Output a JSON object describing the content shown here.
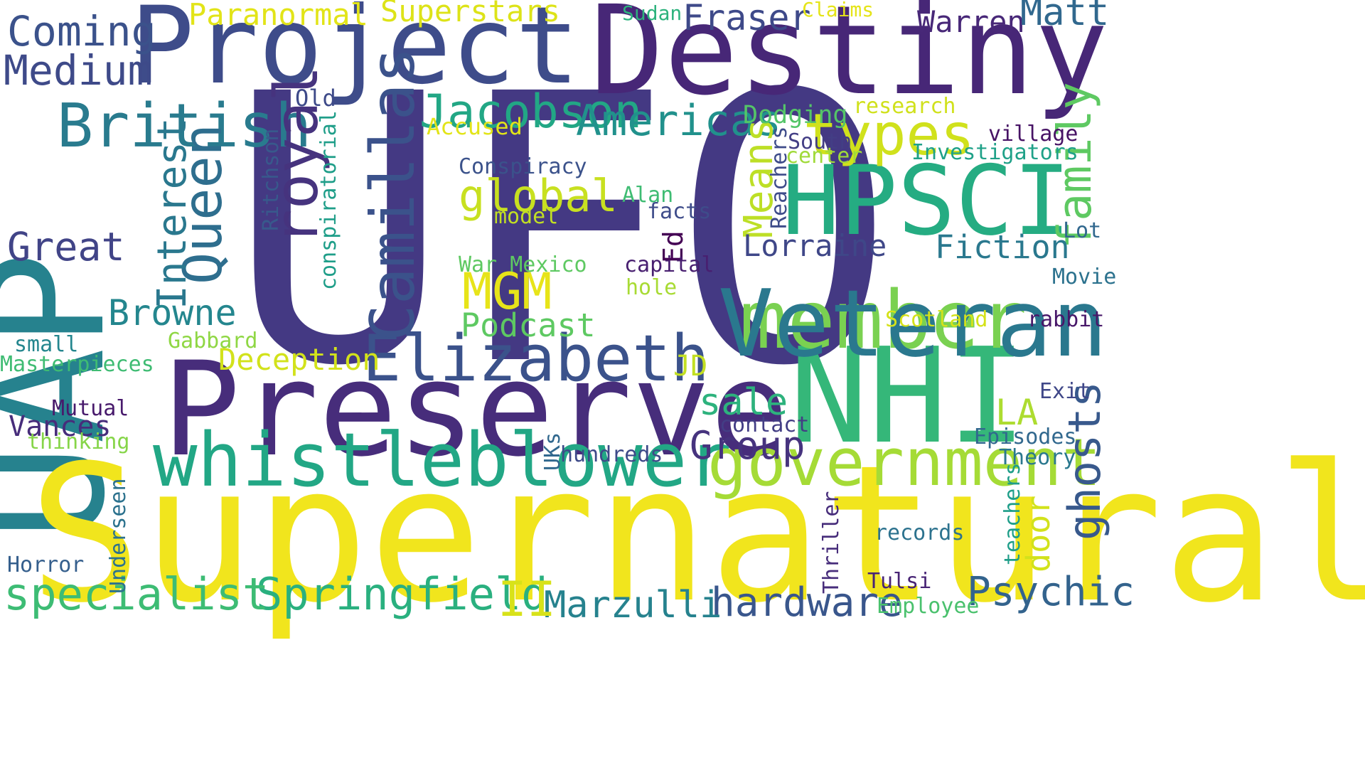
{
  "word_cloud": {
    "words": [
      {
        "text": "UFO",
        "color": "#443983"
      },
      {
        "text": "UAP",
        "color": "#26828e"
      },
      {
        "text": "Supernatural",
        "color": "#f1e51d"
      },
      {
        "text": "Preserve",
        "color": "#472d7b"
      },
      {
        "text": "Destiny",
        "color": "#472777"
      },
      {
        "text": "Project",
        "color": "#3e4c8a"
      },
      {
        "text": "NHI",
        "color": "#35b779"
      },
      {
        "text": "HPSCI",
        "color": "#25ac82"
      },
      {
        "text": "member",
        "color": "#7ad151"
      },
      {
        "text": "Veteran",
        "color": "#2a788e"
      },
      {
        "text": "whistleblower",
        "color": "#22a785"
      },
      {
        "text": "government",
        "color": "#a5db36"
      },
      {
        "text": "Elizabeth",
        "color": "#3b528b"
      },
      {
        "text": "British",
        "color": "#297b8e"
      },
      {
        "text": "Camillas",
        "color": "#3b528b"
      },
      {
        "text": "royal",
        "color": "#46337e"
      },
      {
        "text": "Queen",
        "color": "#2e6e8e"
      },
      {
        "text": "family",
        "color": "#5ec962"
      },
      {
        "text": "ghosts",
        "color": "#38598c"
      },
      {
        "text": "types",
        "color": "#d0e11c"
      },
      {
        "text": "Jacobson",
        "color": "#22a785"
      },
      {
        "text": "Americas",
        "color": "#21918c"
      },
      {
        "text": "Springfield",
        "color": "#2ab07f"
      },
      {
        "text": "specialist",
        "color": "#3dbc74"
      },
      {
        "text": "hardware",
        "color": "#39568c"
      },
      {
        "text": "Psychic",
        "color": "#33638d"
      },
      {
        "text": "Marzulli",
        "color": "#26828e"
      },
      {
        "text": "II",
        "color": "#d8e219"
      },
      {
        "text": "MGM",
        "color": "#e7e419"
      },
      {
        "text": "global",
        "color": "#c8e020"
      },
      {
        "text": "Interest",
        "color": "#2a788e"
      },
      {
        "text": "Means",
        "color": "#bddf26"
      },
      {
        "text": "Coming",
        "color": "#3b528b"
      },
      {
        "text": "Medium",
        "color": "#3e4a89"
      },
      {
        "text": "Paranormal",
        "color": "#e2e418"
      },
      {
        "text": "Superstars",
        "color": "#dde318"
      },
      {
        "text": "Fraser",
        "color": "#3e4989"
      },
      {
        "text": "Warren",
        "color": "#482878"
      },
      {
        "text": "Matt",
        "color": "#31688e"
      },
      {
        "text": "Sudan",
        "color": "#2db27d"
      },
      {
        "text": "Claims",
        "color": "#e5e419"
      },
      {
        "text": "Great",
        "color": "#414487"
      },
      {
        "text": "Browne",
        "color": "#24868e"
      },
      {
        "text": "Podcast",
        "color": "#5ec962"
      },
      {
        "text": "Deception",
        "color": "#d2e21b"
      },
      {
        "text": "sale",
        "color": "#2db27d"
      },
      {
        "text": "Group",
        "color": "#46337e"
      },
      {
        "text": "LA",
        "color": "#addc30"
      },
      {
        "text": "JD",
        "color": "#c2df23"
      },
      {
        "text": "Lorraine",
        "color": "#3f4788"
      },
      {
        "text": "Fiction",
        "color": "#2a788e"
      },
      {
        "text": "Old",
        "color": "#3e4a89"
      },
      {
        "text": "Accused",
        "color": "#e2e418"
      },
      {
        "text": "Dodging",
        "color": "#54c568"
      },
      {
        "text": "research",
        "color": "#d0e11c"
      },
      {
        "text": "South",
        "color": "#433e85"
      },
      {
        "text": "center",
        "color": "#a0da39"
      },
      {
        "text": "village",
        "color": "#471365"
      },
      {
        "text": "Investigators",
        "color": "#1fa188"
      },
      {
        "text": "Conspiracy",
        "color": "#3b528b"
      },
      {
        "text": "Alan",
        "color": "#3fbc73"
      },
      {
        "text": "facts",
        "color": "#3e4c8a"
      },
      {
        "text": "model",
        "color": "#c2df23"
      },
      {
        "text": "Ed",
        "color": "#440154"
      },
      {
        "text": "capital",
        "color": "#481f70"
      },
      {
        "text": "hole",
        "color": "#a8db34"
      },
      {
        "text": "War Mexico",
        "color": "#5ec962"
      },
      {
        "text": "Lot",
        "color": "#31688e"
      },
      {
        "text": "Movie",
        "color": "#2c728e"
      },
      {
        "text": "rabbit",
        "color": "#481769"
      },
      {
        "text": "Scotland",
        "color": "#d5e21a"
      },
      {
        "text": "Exit",
        "color": "#3f4788"
      },
      {
        "text": "Episodes",
        "color": "#31688e"
      },
      {
        "text": "Theory",
        "color": "#2a788e"
      },
      {
        "text": "contact",
        "color": "#433e85"
      },
      {
        "text": "hundreds",
        "color": "#3e4a89"
      },
      {
        "text": "records",
        "color": "#2c728e"
      },
      {
        "text": "Tulsi",
        "color": "#482475"
      },
      {
        "text": "Employee",
        "color": "#4ac16d"
      },
      {
        "text": "small",
        "color": "#24868e"
      },
      {
        "text": "Gabbard",
        "color": "#8fd744"
      },
      {
        "text": "Masterpieces",
        "color": "#3fbc73"
      },
      {
        "text": "Mutual",
        "color": "#481a6c"
      },
      {
        "text": "Vances",
        "color": "#472d7b"
      },
      {
        "text": "thinking",
        "color": "#86d549"
      },
      {
        "text": "Horror",
        "color": "#355f8d"
      },
      {
        "text": "Ritchson",
        "color": "#38598c"
      },
      {
        "text": "conspiratorial",
        "color": "#1f9e89"
      },
      {
        "text": "Reachers",
        "color": "#3e4c8a"
      },
      {
        "text": "door",
        "color": "#d2e21b"
      },
      {
        "text": "teachers",
        "color": "#1f9e89"
      },
      {
        "text": "Thriller",
        "color": "#472d7b"
      },
      {
        "text": "UKs",
        "color": "#31688e"
      },
      {
        "text": "Underseen",
        "color": "#2c728e"
      }
    ]
  }
}
